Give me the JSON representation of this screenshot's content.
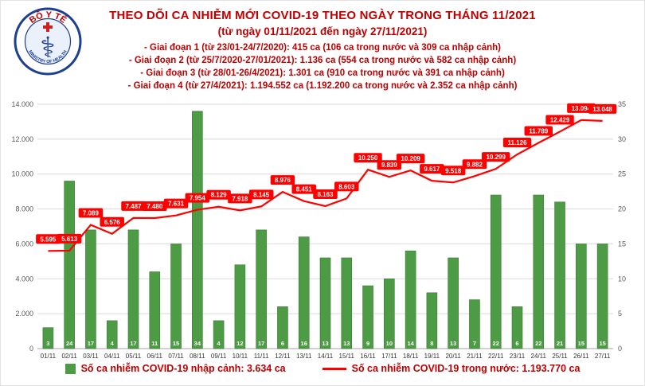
{
  "header": {
    "title": "THEO DÕI CA NHIỄM MỚI COVID-19 THEO NGÀY TRONG THÁNG 11/2021",
    "subtitle": "(từ ngày 01/11/2021 đến ngày 27/11/2021)",
    "stages": [
      "- Giai đoạn 1 (từ 23/01-24/7/2020): 415 ca (106 ca trong nước và 309 ca nhập cảnh)",
      "- Giai đoạn 2 (từ 25/7/2020-27/01/2021): 1.136 ca (554 ca trong nước và 582 ca nhập cảnh)",
      "- Giai đoạn 3 (từ 28/01-26/4/2021): 1.301 ca (910 ca trong nước và 391 ca nhập cảnh)",
      "- Giai đoạn 4 (từ 27/4/2021): 1.194.552 ca (1.192.200 ca trong nước và 2.352 ca nhập cảnh)"
    ],
    "logo": {
      "top_text": "BỘ Y TẾ",
      "bottom_text": "MINISTRY OF HEALTH"
    }
  },
  "chart_data": {
    "type": "bar+line",
    "categories": [
      "01/11",
      "02/11",
      "03/11",
      "04/11",
      "05/11",
      "06/11",
      "07/11",
      "08/11",
      "09/11",
      "10/11",
      "11/11",
      "12/11",
      "13/11",
      "14/11",
      "15/11",
      "16/11",
      "17/11",
      "18/11",
      "19/11",
      "20/11",
      "21/11",
      "22/11",
      "23/11",
      "24/11",
      "25/11",
      "26/11",
      "27/11"
    ],
    "series": [
      {
        "name": "Số ca nhiễm COVID-19 nhập cảnh",
        "type": "bar",
        "axis": "right",
        "color": "#4d9b44",
        "values": [
          3,
          24,
          17,
          4,
          17,
          11,
          15,
          34,
          4,
          12,
          17,
          6,
          16,
          13,
          13,
          9,
          10,
          14,
          8,
          13,
          7,
          22,
          6,
          22,
          21,
          15,
          15
        ]
      },
      {
        "name": "Số ca nhiễm COVID-19 trong nước",
        "type": "line",
        "axis": "left",
        "color": "#ff0000",
        "values": [
          5595,
          5613,
          7089,
          6576,
          7487,
          7480,
          7631,
          7954,
          8129,
          7918,
          8145,
          8976,
          8451,
          8163,
          8603,
          10250,
          9839,
          10209,
          9617,
          9518,
          9882,
          10299,
          11126,
          11789,
          12429,
          13094,
          13048
        ],
        "labels": [
          "5.595",
          "5.613",
          "7.089",
          "6.576",
          "7.487",
          "7.480",
          "7.631",
          "7.954",
          "8.129",
          "7.918",
          "8.145",
          "8.976",
          "8.451",
          "8.163",
          "8.603",
          "10.250",
          "9.839",
          "10.209",
          "9.617",
          "9.518",
          "9.882",
          "10.299",
          "11.126",
          "11.789",
          "12.429",
          "13.094",
          "13.048"
        ]
      }
    ],
    "left_axis": {
      "min": 0,
      "max": 14000,
      "step": 2000,
      "tick_labels": [
        "0",
        "2.000",
        "4.000",
        "6.000",
        "8.000",
        "10.000",
        "12.000",
        "14.000"
      ]
    },
    "right_axis": {
      "min": 0,
      "max": 35,
      "step": 5,
      "tick_labels": [
        "0",
        "5",
        "10",
        "15",
        "20",
        "25",
        "30",
        "35"
      ]
    },
    "grid": true,
    "legend_position": "bottom"
  },
  "legend": {
    "items": [
      {
        "marker": "square",
        "color": "#4d9b44",
        "label": "Số ca nhiễm COVID-19 nhập cảnh: 3.634 ca"
      },
      {
        "marker": "line",
        "color": "#ff0000",
        "label": "Số ca nhiễm COVID-19 trong nước: 1.193.770 ca"
      }
    ]
  }
}
